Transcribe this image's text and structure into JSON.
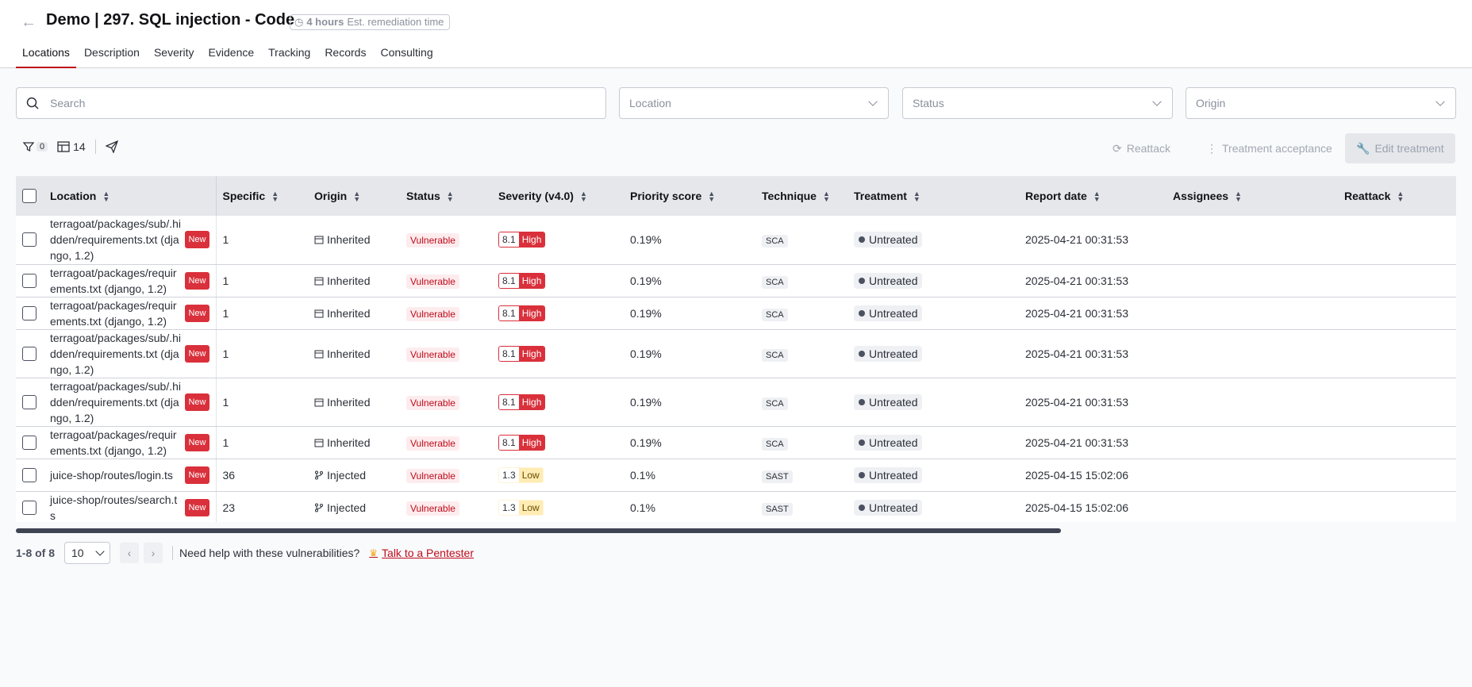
{
  "header": {
    "back_icon": "arrow-left-icon",
    "title": "Demo | 297. SQL injection - Code",
    "time_value": "4 hours",
    "time_label": "Est. remediation time"
  },
  "tabs": [
    "Locations",
    "Description",
    "Severity",
    "Evidence",
    "Tracking",
    "Records",
    "Consulting"
  ],
  "filters": {
    "search_placeholder": "Search",
    "location_placeholder": "Location",
    "status_placeholder": "Status",
    "origin_placeholder": "Origin"
  },
  "toolbar": {
    "filter_count": "0",
    "columns_count": "14",
    "reattack_label": "Reattack",
    "treatment_acceptance_label": "Treatment acceptance",
    "edit_treatment_label": "Edit treatment"
  },
  "table": {
    "columns": [
      "Location",
      "Specific",
      "Origin",
      "Status",
      "Severity (v4.0)",
      "Priority score",
      "Technique",
      "Treatment",
      "Report date",
      "Assignees",
      "Reattack"
    ],
    "new_label": "New",
    "rows": [
      {
        "location": "terragoat/packages/sub/.hidden/requirements.txt (django, 1.2)",
        "specific": "1",
        "origin": "Inherited",
        "status": "Vulnerable",
        "sev_score": "8.1",
        "sev_label": "High",
        "priority": "0.19%",
        "technique": "SCA",
        "treatment": "Untreated",
        "date": "2025-04-21 00:31:53"
      },
      {
        "location": "terragoat/packages/requirements.txt (django, 1.2)",
        "specific": "1",
        "origin": "Inherited",
        "status": "Vulnerable",
        "sev_score": "8.1",
        "sev_label": "High",
        "priority": "0.19%",
        "technique": "SCA",
        "treatment": "Untreated",
        "date": "2025-04-21 00:31:53"
      },
      {
        "location": "terragoat/packages/requirements.txt (django, 1.2)",
        "specific": "1",
        "origin": "Inherited",
        "status": "Vulnerable",
        "sev_score": "8.1",
        "sev_label": "High",
        "priority": "0.19%",
        "technique": "SCA",
        "treatment": "Untreated",
        "date": "2025-04-21 00:31:53"
      },
      {
        "location": "terragoat/packages/sub/.hidden/requirements.txt (django, 1.2)",
        "specific": "1",
        "origin": "Inherited",
        "status": "Vulnerable",
        "sev_score": "8.1",
        "sev_label": "High",
        "priority": "0.19%",
        "technique": "SCA",
        "treatment": "Untreated",
        "date": "2025-04-21 00:31:53"
      },
      {
        "location": "terragoat/packages/sub/.hidden/requirements.txt (django, 1.2)",
        "specific": "1",
        "origin": "Inherited",
        "status": "Vulnerable",
        "sev_score": "8.1",
        "sev_label": "High",
        "priority": "0.19%",
        "technique": "SCA",
        "treatment": "Untreated",
        "date": "2025-04-21 00:31:53"
      },
      {
        "location": "terragoat/packages/requirements.txt (django, 1.2)",
        "specific": "1",
        "origin": "Inherited",
        "status": "Vulnerable",
        "sev_score": "8.1",
        "sev_label": "High",
        "priority": "0.19%",
        "technique": "SCA",
        "treatment": "Untreated",
        "date": "2025-04-21 00:31:53"
      },
      {
        "location": "juice-shop/routes/login.ts",
        "specific": "36",
        "origin": "Injected",
        "status": "Vulnerable",
        "sev_score": "1.3",
        "sev_label": "Low",
        "priority": "0.1%",
        "technique": "SAST",
        "treatment": "Untreated",
        "date": "2025-04-15 15:02:06"
      },
      {
        "location": "juice-shop/routes/search.ts",
        "specific": "23",
        "origin": "Injected",
        "status": "Vulnerable",
        "sev_score": "1.3",
        "sev_label": "Low",
        "priority": "0.1%",
        "technique": "SAST",
        "treatment": "Untreated",
        "date": "2025-04-15 15:02:06"
      }
    ]
  },
  "pagination": {
    "range": "1-8 of 8",
    "page_size": "10",
    "help_text": "Need help with these vulnerabilities?",
    "pentester_link": "Talk to a Pentester"
  }
}
